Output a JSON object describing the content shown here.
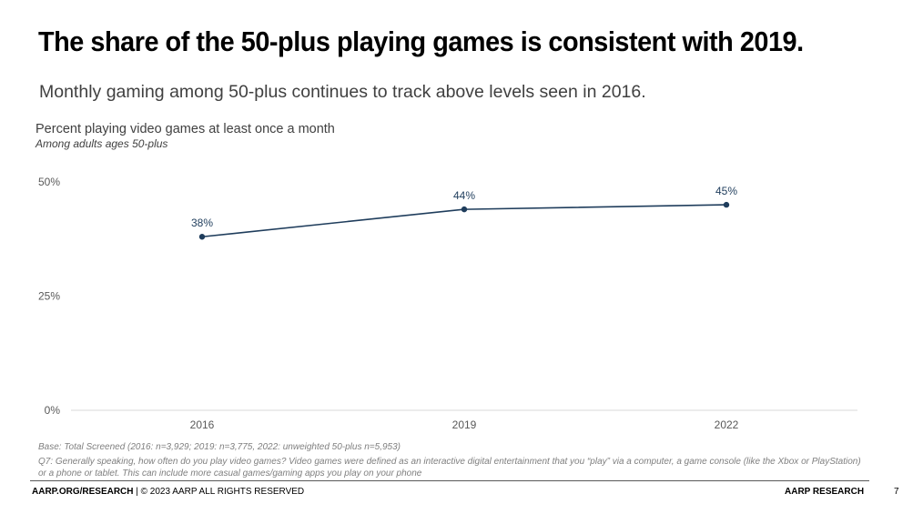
{
  "slide": {
    "title": "The share of the 50-plus playing games is consistent with 2019.",
    "subtitle": "Monthly gaming among 50-plus continues to track above levels seen in 2016."
  },
  "chart_data": {
    "type": "line",
    "title": "Percent playing video games at least once a month",
    "subtitle": "Among adults ages 50-plus",
    "categories": [
      "2016",
      "2019",
      "2022"
    ],
    "series": [
      {
        "name": "Percent playing video games at least once a month",
        "values": [
          38,
          44,
          45
        ],
        "labels": [
          "38%",
          "44%",
          "45%"
        ]
      }
    ],
    "ylim": [
      0,
      50
    ],
    "yticks": [
      0,
      25,
      50
    ],
    "ytick_labels": [
      "0%",
      "25%",
      "50%"
    ],
    "xlabel": "",
    "ylabel": "",
    "grid": false,
    "color": "#1f3d5c"
  },
  "notes": {
    "base": "Base: Total Screened (2016: n=3,929; 2019: n=3,775, 2022: unweighted 50-plus n=5,953)",
    "question": "Q7: Generally speaking, how often do you play video games? Video games were defined as an interactive digital entertainment that you “play” via a computer, a game console (like the Xbox or PlayStation) or a phone or tablet. This can include more casual games/gaming apps you play on your phone"
  },
  "footer": {
    "site": "AARP.ORG/RESEARCH",
    "rights": " | © 2023 AARP ALL RIGHTS RESERVED",
    "brand": "AARP RESEARCH",
    "page": "7"
  }
}
